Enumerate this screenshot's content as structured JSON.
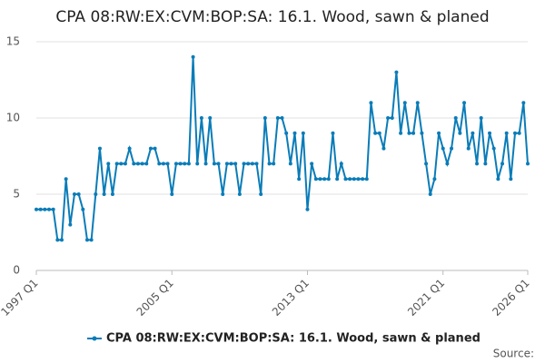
{
  "chart_data": {
    "type": "line",
    "title": "CPA 08:RW:EX:CVM:BOP:SA: 16.1. Wood, sawn & planed",
    "categories": [
      "1997 Q1",
      null,
      null,
      null,
      null,
      null,
      null,
      null,
      null,
      null,
      null,
      null,
      null,
      null,
      null,
      null,
      null,
      null,
      null,
      null,
      null,
      null,
      null,
      null,
      null,
      null,
      null,
      null,
      null,
      null,
      null,
      null,
      "2005 Q1",
      null,
      null,
      null,
      null,
      null,
      null,
      null,
      null,
      null,
      null,
      null,
      null,
      null,
      null,
      null,
      null,
      null,
      null,
      null,
      null,
      null,
      null,
      null,
      null,
      null,
      null,
      null,
      null,
      null,
      null,
      null,
      "2013 Q1",
      null,
      null,
      null,
      null,
      null,
      null,
      null,
      null,
      null,
      null,
      null,
      null,
      null,
      null,
      null,
      null,
      null,
      null,
      null,
      null,
      null,
      null,
      null,
      null,
      null,
      null,
      null,
      null,
      null,
      null,
      null,
      "2021 Q1",
      null,
      null,
      null,
      null,
      null,
      null,
      null,
      null,
      null,
      null,
      null,
      null,
      null,
      null,
      null,
      null,
      null,
      null,
      null,
      "2026 Q1"
    ],
    "series": [
      {
        "name": "CPA 08:RW:EX:CVM:BOP:SA: 16.1. Wood, sawn & planed",
        "color": "#0a7cb8",
        "values": [
          4,
          4,
          4,
          4,
          4,
          2,
          2,
          6,
          3,
          5,
          5,
          4,
          2,
          2,
          5,
          8,
          5,
          7,
          5,
          7,
          7,
          7,
          8,
          7,
          7,
          7,
          7,
          8,
          8,
          7,
          7,
          7,
          5,
          7,
          7,
          7,
          7,
          14,
          7,
          10,
          7,
          10,
          7,
          7,
          5,
          7,
          7,
          7,
          5,
          7,
          7,
          7,
          7,
          5,
          10,
          7,
          7,
          10,
          10,
          9,
          7,
          9,
          6,
          9,
          4,
          7,
          6,
          6,
          6,
          6,
          9,
          6,
          7,
          6,
          6,
          6,
          6,
          6,
          6,
          11,
          9,
          9,
          8,
          10,
          10,
          13,
          9,
          11,
          9,
          9,
          11,
          9,
          7,
          5,
          6,
          9,
          8,
          7,
          8,
          10,
          9,
          11,
          8,
          9,
          7,
          10,
          7,
          9,
          8,
          6,
          7,
          9,
          6,
          9,
          9,
          11,
          7
        ]
      }
    ],
    "ylim": [
      0,
      15
    ],
    "yticks": [
      0,
      5,
      10,
      15
    ],
    "grid": true,
    "legend": "bottom",
    "source": "Source:"
  }
}
